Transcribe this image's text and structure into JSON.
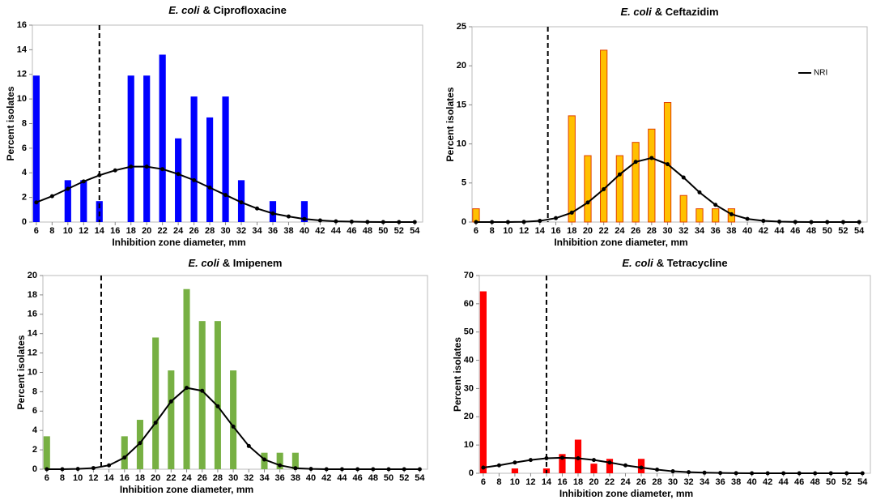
{
  "chart_data": [
    {
      "type": "bar-line",
      "organism": "E. coli",
      "title": "& Ciprofloxacine",
      "xlabel": "Inhibition zone diameter, mm",
      "ylabel": "Percent isolates",
      "x": [
        6,
        8,
        10,
        12,
        14,
        16,
        18,
        20,
        22,
        24,
        26,
        28,
        30,
        32,
        34,
        36,
        38,
        40,
        42,
        44,
        46,
        48,
        50,
        52,
        54
      ],
      "xlim": [
        5.5,
        55
      ],
      "ylim": [
        0,
        16
      ],
      "yticks": [
        0,
        2,
        4,
        6,
        8,
        10,
        12,
        14,
        16
      ],
      "cutoff": 14,
      "series": [
        {
          "kind": "bar",
          "color": "#0000ff",
          "values": [
            11.9,
            null,
            3.4,
            3.4,
            1.7,
            null,
            11.9,
            11.9,
            13.6,
            6.8,
            10.2,
            8.5,
            10.2,
            3.4,
            null,
            1.7,
            null,
            1.7,
            null,
            null,
            null,
            null,
            null,
            null,
            null
          ]
        },
        {
          "kind": "line",
          "color": "#000000",
          "values": [
            1.6,
            2.1,
            2.7,
            3.3,
            3.8,
            4.2,
            4.5,
            4.5,
            4.3,
            3.9,
            3.4,
            2.8,
            2.2,
            1.6,
            1.1,
            0.7,
            0.45,
            0.25,
            0.13,
            0.06,
            0.03,
            0.01,
            0,
            0,
            0
          ]
        }
      ]
    },
    {
      "type": "bar-line",
      "organism": "E. coli",
      "title": "& Ceftazidim",
      "xlabel": "Inhibition zone diameter, mm",
      "ylabel": "Percent isolates",
      "x": [
        6,
        8,
        10,
        12,
        14,
        16,
        18,
        20,
        22,
        24,
        26,
        28,
        30,
        32,
        34,
        36,
        38,
        40,
        42,
        44,
        46,
        48,
        50,
        52,
        54
      ],
      "xlim": [
        5.5,
        55
      ],
      "ylim": [
        0,
        25
      ],
      "yticks": [
        0,
        5,
        10,
        15,
        20,
        25
      ],
      "cutoff": 15,
      "legend": "upper right",
      "series": [
        {
          "kind": "bar",
          "color": "#ffc000",
          "edge": "#e04000",
          "values": [
            1.7,
            null,
            null,
            null,
            null,
            null,
            13.6,
            8.5,
            22.0,
            8.5,
            10.2,
            11.9,
            15.3,
            3.4,
            1.7,
            1.7,
            1.7,
            null,
            null,
            null,
            null,
            null,
            null,
            null,
            null
          ]
        },
        {
          "kind": "line",
          "name": "NRI",
          "color": "#000000",
          "values": [
            0,
            0,
            0,
            0.02,
            0.15,
            0.5,
            1.2,
            2.5,
            4.2,
            6.1,
            7.7,
            8.2,
            7.4,
            5.7,
            3.8,
            2.2,
            1.0,
            0.4,
            0.15,
            0.05,
            0.01,
            0,
            0,
            0,
            0
          ]
        }
      ]
    },
    {
      "type": "bar-line",
      "organism": "E. coli",
      "title": "& Imipenem",
      "xlabel": "Inhibition zone diameter, mm",
      "ylabel": "Percent isolates",
      "x": [
        6,
        8,
        10,
        12,
        14,
        16,
        18,
        20,
        22,
        24,
        26,
        28,
        30,
        32,
        34,
        36,
        38,
        40,
        42,
        44,
        46,
        48,
        50,
        52,
        54
      ],
      "xlim": [
        5.5,
        55
      ],
      "ylim": [
        0,
        20
      ],
      "yticks": [
        0,
        2,
        4,
        6,
        8,
        10,
        12,
        14,
        16,
        18,
        20
      ],
      "cutoff": 13,
      "series": [
        {
          "kind": "bar",
          "color": "#77b043",
          "values": [
            3.4,
            null,
            null,
            null,
            null,
            3.4,
            5.1,
            13.6,
            10.2,
            18.6,
            15.3,
            15.3,
            10.2,
            null,
            1.7,
            1.7,
            1.7,
            null,
            null,
            null,
            null,
            null,
            null,
            null,
            null
          ]
        },
        {
          "kind": "line",
          "color": "#000000",
          "values": [
            0,
            0,
            0.03,
            0.12,
            0.4,
            1.2,
            2.7,
            4.8,
            7.0,
            8.4,
            8.1,
            6.5,
            4.4,
            2.4,
            1.0,
            0.4,
            0.1,
            0.03,
            0,
            0,
            0,
            0,
            0,
            0,
            0
          ]
        }
      ]
    },
    {
      "type": "bar-line",
      "organism": "E. coli",
      "title": "& Tetracycline",
      "xlabel": "Inhibition zone diameter, mm",
      "ylabel": "Percent isolates",
      "x": [
        6,
        8,
        10,
        12,
        14,
        16,
        18,
        20,
        22,
        24,
        26,
        28,
        30,
        32,
        34,
        36,
        38,
        40,
        42,
        44,
        46,
        48,
        50,
        52,
        54
      ],
      "xlim": [
        5.5,
        55
      ],
      "ylim": [
        0,
        70
      ],
      "yticks": [
        0,
        10,
        20,
        30,
        40,
        50,
        60,
        70
      ],
      "cutoff": 14,
      "series": [
        {
          "kind": "bar",
          "color": "#ff0000",
          "values": [
            64.4,
            null,
            1.7,
            null,
            1.7,
            6.8,
            11.9,
            3.4,
            5.1,
            null,
            5.1,
            null,
            null,
            null,
            null,
            null,
            null,
            null,
            null,
            null,
            null,
            null,
            null,
            null,
            null
          ]
        },
        {
          "kind": "line",
          "color": "#000000",
          "values": [
            2.0,
            2.8,
            3.8,
            4.7,
            5.3,
            5.5,
            5.3,
            4.7,
            3.8,
            2.8,
            2.0,
            1.3,
            0.7,
            0.4,
            0.2,
            0.1,
            0.04,
            0.01,
            0,
            0,
            0,
            0,
            0,
            0,
            0
          ]
        }
      ]
    }
  ]
}
